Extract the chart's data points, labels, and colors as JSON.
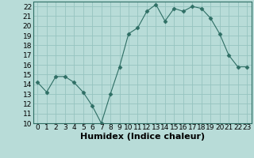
{
  "xlabel": "Humidex (Indice chaleur)",
  "ylabel": "",
  "x_values": [
    0,
    1,
    2,
    3,
    4,
    5,
    6,
    7,
    8,
    9,
    10,
    11,
    12,
    13,
    14,
    15,
    16,
    17,
    18,
    19,
    20,
    21,
    22,
    23
  ],
  "y_values": [
    14.2,
    13.2,
    14.8,
    14.8,
    14.2,
    13.2,
    11.8,
    10.0,
    13.0,
    15.8,
    19.2,
    19.8,
    21.5,
    22.2,
    20.5,
    21.8,
    21.5,
    22.0,
    21.8,
    20.8,
    19.2,
    17.0,
    15.8,
    15.8
  ],
  "line_color": "#2e6e64",
  "marker": "D",
  "marker_size": 2.5,
  "background_color": "#b8dcd8",
  "grid_color": "#96c4c0",
  "ylim": [
    10,
    22.5
  ],
  "xlim": [
    -0.5,
    23.5
  ],
  "yticks": [
    10,
    11,
    12,
    13,
    14,
    15,
    16,
    17,
    18,
    19,
    20,
    21,
    22
  ],
  "xticks": [
    0,
    1,
    2,
    3,
    4,
    5,
    6,
    7,
    8,
    9,
    10,
    11,
    12,
    13,
    14,
    15,
    16,
    17,
    18,
    19,
    20,
    21,
    22,
    23
  ],
  "tick_fontsize": 6.5,
  "xlabel_fontsize": 8,
  "fig_width": 3.2,
  "fig_height": 2.0,
  "dpi": 100
}
